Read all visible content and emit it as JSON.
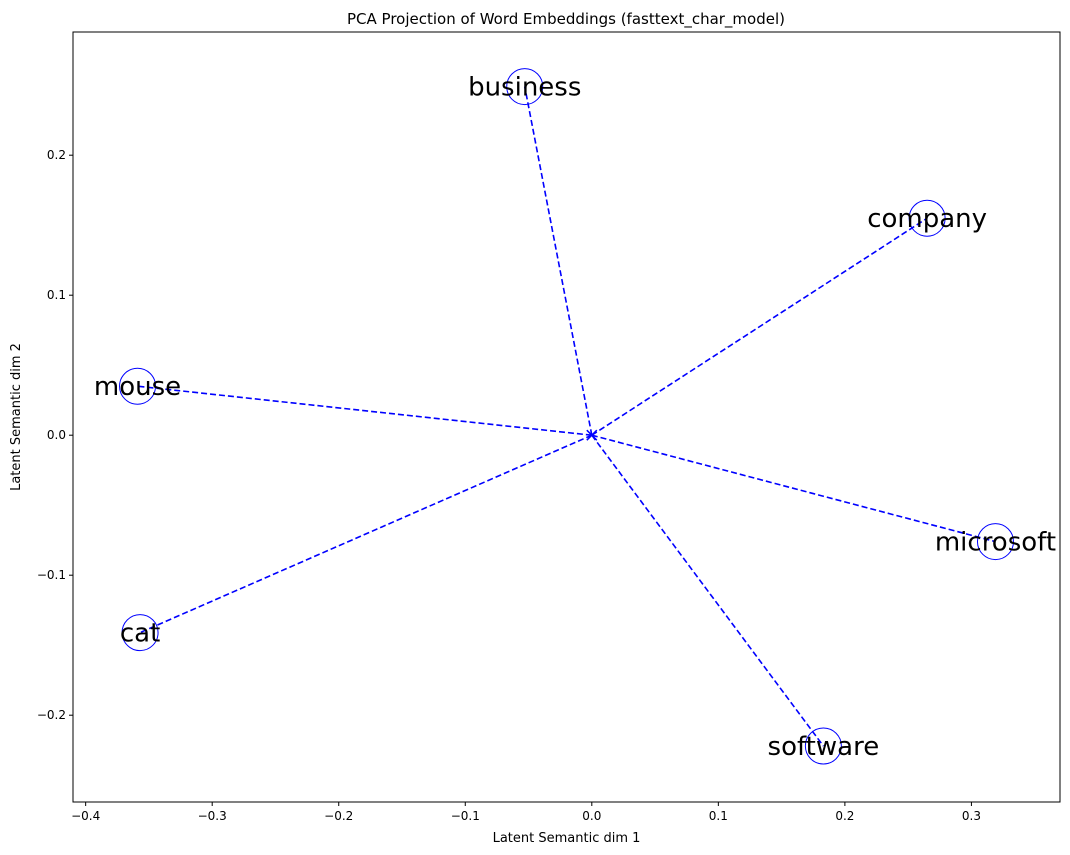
{
  "chart_data": {
    "type": "scatter",
    "title": "PCA Projection of Word Embeddings (fasttext_char_model)",
    "xlabel": "Latent Semantic dim 1",
    "ylabel": "Latent Semantic dim 2",
    "xlim": [
      -0.41,
      0.37
    ],
    "ylim": [
      -0.262,
      0.288
    ],
    "x_ticks": [
      -0.4,
      -0.3,
      -0.2,
      -0.1,
      0.0,
      0.1,
      0.2,
      0.3
    ],
    "x_tick_labels": [
      "−0.4",
      "−0.3",
      "−0.2",
      "−0.1",
      "0.0",
      "0.1",
      "0.2",
      "0.3"
    ],
    "y_ticks": [
      -0.2,
      -0.1,
      0.0,
      0.1,
      0.2
    ],
    "y_tick_labels": [
      "−0.2",
      "−0.1",
      "0.0",
      "0.1",
      "0.2"
    ],
    "grid": false,
    "origin": [
      0,
      0
    ],
    "line_color": "#0000ff",
    "points": [
      {
        "label": "business",
        "x": -0.053,
        "y": 0.249
      },
      {
        "label": "company",
        "x": 0.265,
        "y": 0.155
      },
      {
        "label": "mouse",
        "x": -0.359,
        "y": 0.035
      },
      {
        "label": "microsoft",
        "x": 0.319,
        "y": -0.076
      },
      {
        "label": "cat",
        "x": -0.357,
        "y": -0.141
      },
      {
        "label": "software",
        "x": 0.183,
        "y": -0.222
      }
    ]
  }
}
